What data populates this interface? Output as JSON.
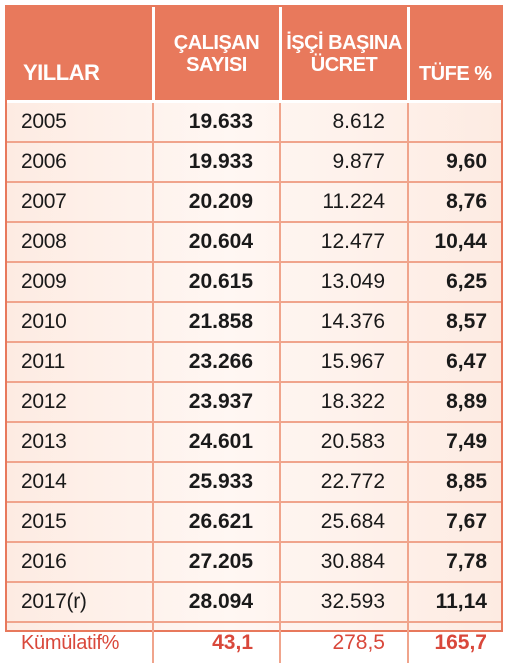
{
  "chart_data": {
    "type": "table",
    "columns": [
      "YILLAR",
      "ÇALIŞAN SAYISI",
      "İŞÇİ BAŞINA ÜCRET",
      "TÜFE %"
    ],
    "header": {
      "years": "YILLAR",
      "workers": [
        "ÇALIŞAN",
        "SAYISI"
      ],
      "wage": [
        "İŞÇİ BAŞINA",
        "ÜCRET"
      ],
      "cpi": "TÜFE %"
    },
    "rows": [
      {
        "year": "2005",
        "workers": "19.633",
        "wage": "8.612",
        "cpi": ""
      },
      {
        "year": "2006",
        "workers": "19.933",
        "wage": "9.877",
        "cpi": "9,60"
      },
      {
        "year": "2007",
        "workers": "20.209",
        "wage": "11.224",
        "cpi": "8,76"
      },
      {
        "year": "2008",
        "workers": "20.604",
        "wage": "12.477",
        "cpi": "10,44"
      },
      {
        "year": "2009",
        "workers": "20.615",
        "wage": "13.049",
        "cpi": "6,25"
      },
      {
        "year": "2010",
        "workers": "21.858",
        "wage": "14.376",
        "cpi": "8,57"
      },
      {
        "year": "2011",
        "workers": "23.266",
        "wage": "15.967",
        "cpi": "6,47"
      },
      {
        "year": "2012",
        "workers": "23.937",
        "wage": "18.322",
        "cpi": "8,89"
      },
      {
        "year": "2013",
        "workers": "24.601",
        "wage": "20.583",
        "cpi": "7,49"
      },
      {
        "year": "2014",
        "workers": "25.933",
        "wage": "22.772",
        "cpi": "8,85"
      },
      {
        "year": "2015",
        "workers": "26.621",
        "wage": "25.684",
        "cpi": "7,67"
      },
      {
        "year": "2016",
        "workers": "27.205",
        "wage": "30.884",
        "cpi": "7,78"
      },
      {
        "year": "2017(r)",
        "workers": "28.094",
        "wage": "32.593",
        "cpi": "11,14"
      }
    ],
    "summary": {
      "year": "Kümülatif%",
      "workers": "43,1",
      "wage": "278,5",
      "cpi": "165,7"
    }
  },
  "colors": {
    "header_bg": "#e8795c",
    "header_text": "#ffffff",
    "grid": "#f0a48c",
    "summary_text": "#d9483b",
    "row_bg": "#fdebe2"
  }
}
